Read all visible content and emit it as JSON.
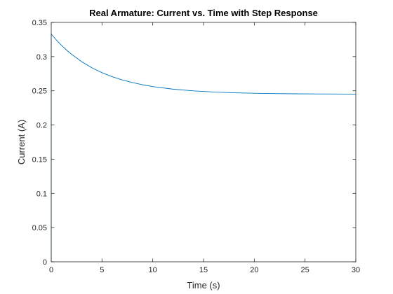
{
  "chart_data": {
    "type": "line",
    "title": "Real Armature: Current vs. Time with Step Response",
    "xlabel": "Time (s)",
    "ylabel": "Current (A)",
    "xlim": [
      0,
      30
    ],
    "ylim": [
      0,
      0.35
    ],
    "xticks": [
      0,
      5,
      10,
      15,
      20,
      25,
      30
    ],
    "yticks": [
      0,
      0.05,
      0.1,
      0.15,
      0.2,
      0.25,
      0.3,
      0.35
    ],
    "xtick_labels": [
      "0",
      "5",
      "10",
      "15",
      "20",
      "25",
      "30"
    ],
    "ytick_labels": [
      "0",
      "0.05",
      "0.1",
      "0.15",
      "0.2",
      "0.25",
      "0.3",
      "0.35"
    ],
    "grid": false,
    "series": [
      {
        "color": "#0072bd",
        "x": [
          0,
          0.001,
          0.1,
          0.5,
          1,
          1.5,
          2,
          3,
          4,
          5,
          6,
          7,
          8,
          9,
          10,
          12,
          14,
          16,
          18,
          20,
          22,
          24,
          26,
          28,
          30
        ],
        "y": [
          0,
          0.333,
          0.3312,
          0.3244,
          0.3167,
          0.3097,
          0.3034,
          0.2926,
          0.2837,
          0.2765,
          0.2706,
          0.2659,
          0.262,
          0.2588,
          0.2562,
          0.2524,
          0.2499,
          0.2482,
          0.2471,
          0.2464,
          0.2459,
          0.2456,
          0.2454,
          0.2453,
          0.2452
        ]
      }
    ]
  }
}
